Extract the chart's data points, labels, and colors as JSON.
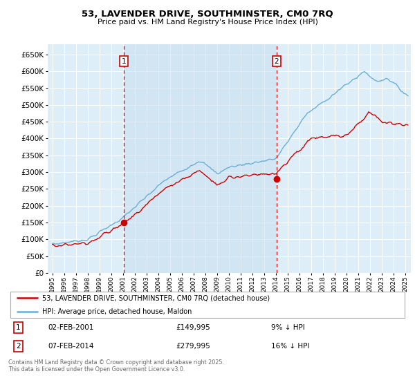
{
  "title": "53, LAVENDER DRIVE, SOUTHMINSTER, CM0 7RQ",
  "subtitle": "Price paid vs. HM Land Registry's House Price Index (HPI)",
  "legend_line1": "53, LAVENDER DRIVE, SOUTHMINSTER, CM0 7RQ (detached house)",
  "legend_line2": "HPI: Average price, detached house, Maldon",
  "annotation1_label": "1",
  "annotation1_date": "02-FEB-2001",
  "annotation1_price": "£149,995",
  "annotation1_hpi": "9% ↓ HPI",
  "annotation2_label": "2",
  "annotation2_date": "07-FEB-2014",
  "annotation2_price": "£279,995",
  "annotation2_hpi": "16% ↓ HPI",
  "footer": "Contains HM Land Registry data © Crown copyright and database right 2025.\nThis data is licensed under the Open Government Licence v3.0.",
  "hpi_color": "#6aaed6",
  "price_color": "#cc0000",
  "vline_color": "#cc0000",
  "shading_color": "#ddeef8",
  "background_color": "#ffffff",
  "plot_bg_color": "#ddeef8",
  "grid_color": "#ffffff",
  "ylim": [
    0,
    680000
  ],
  "ytick_step": 50000,
  "sale1_t": 2001.083,
  "sale2_t": 2014.083,
  "sale1_price": 149995,
  "sale2_price": 279995
}
